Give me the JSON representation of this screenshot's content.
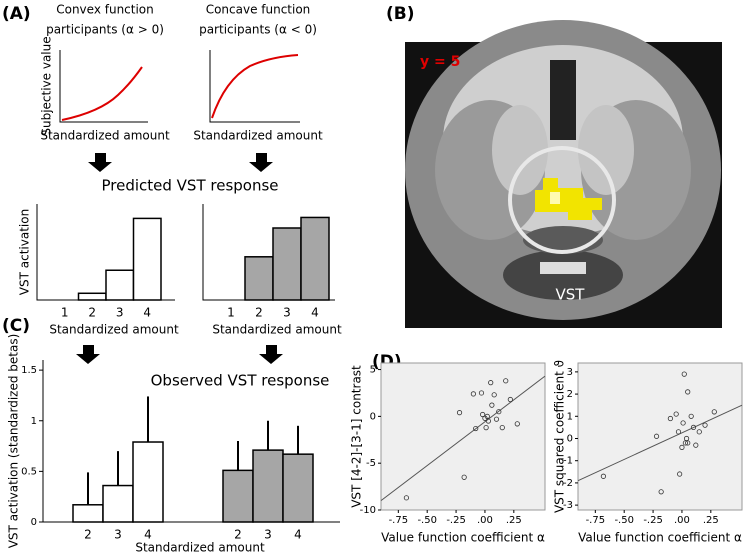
{
  "panel_labels": [
    "(A)",
    "(B)",
    "(C)",
    "(D)"
  ],
  "headings": {
    "predicted": "Predicted VST response",
    "observed": "Observed VST response"
  },
  "curves": [
    {
      "title": [
        "Convex function",
        "participants (α > 0)"
      ],
      "ylabel": "Subjective value",
      "xlabel": "Standardized amount"
    },
    {
      "title": [
        "Concave function",
        "participants (α < 0)"
      ],
      "xlabel": "Standardized amount"
    }
  ],
  "brain": {
    "slice": "y = 5",
    "region": "VST"
  },
  "chart_data": [
    {
      "type": "bar",
      "categories": [
        "1",
        "2",
        "3",
        "4"
      ],
      "values": [
        0,
        0.07,
        0.31,
        0.85
      ],
      "ylim": [
        0,
        1
      ],
      "color": "#ffffff",
      "ylabel": "VST activation",
      "xlabel": "Standardized amount"
    },
    {
      "type": "bar",
      "categories": [
        "1",
        "2",
        "3",
        "4"
      ],
      "values": [
        0,
        0.45,
        0.75,
        0.86
      ],
      "ylim": [
        0,
        1
      ],
      "color": "#a6a6a6",
      "xlabel": "Standardized amount"
    },
    {
      "type": "errorbar",
      "categories": [
        "2",
        "3",
        "4",
        null,
        null,
        "2",
        "3",
        "4"
      ],
      "values": [
        0.17,
        0.36,
        0.79,
        null,
        null,
        0.51,
        0.71,
        0.67
      ],
      "errors": [
        0.32,
        0.34,
        0.45,
        null,
        null,
        0.29,
        0.29,
        0.28
      ],
      "colors": [
        "#ffffff",
        "#ffffff",
        "#ffffff",
        null,
        null,
        "#a6a6a6",
        "#a6a6a6",
        "#a6a6a6"
      ],
      "ylim": [
        0,
        1.6
      ],
      "yticks": [
        0,
        0.5,
        1,
        1.5
      ],
      "ylabel": "VST activation (standardized betas)",
      "xlabel": "Standardized amount"
    },
    {
      "type": "scatter",
      "xlabel": "Value function coefficient α",
      "ylabel": "VST [4-2]-[3-1] contrast",
      "x": [
        -0.68,
        -0.22,
        -0.18,
        -0.1,
        -0.08,
        -0.03,
        -0.02,
        0.0,
        0.01,
        0.02,
        0.03,
        0.05,
        0.06,
        0.08,
        0.1,
        0.12,
        0.15,
        0.18,
        0.22,
        0.28
      ],
      "values": [
        -8.7,
        0.4,
        -6.5,
        2.4,
        -1.3,
        2.5,
        0.2,
        -0.2,
        -1.2,
        0.0,
        -0.5,
        3.6,
        1.2,
        2.3,
        -0.3,
        0.5,
        -1.2,
        3.8,
        1.8,
        -0.8
      ],
      "fit": {
        "x": [
          -0.9,
          0.52
        ],
        "y": [
          -9.0,
          4.3
        ]
      },
      "xlim": [
        -0.9,
        0.52
      ],
      "ylim": [
        -10,
        5.7
      ],
      "xticks": [
        {
          "value": -0.75,
          "label": "-.75"
        },
        {
          "value": -0.5,
          "label": "-.50"
        },
        {
          "value": -0.25,
          "label": "-.25"
        },
        {
          "value": 0,
          "label": ".00"
        },
        {
          "value": 0.25,
          "label": ".25"
        }
      ],
      "yticks": [
        5,
        0,
        -5,
        -10
      ]
    },
    {
      "type": "scatter",
      "xlabel": "Value function coefficient α",
      "ylabel": "VST squared coefficient ϑ",
      "x": [
        -0.68,
        -0.22,
        -0.18,
        -0.1,
        -0.05,
        -0.02,
        0.0,
        0.01,
        0.02,
        0.03,
        0.04,
        0.05,
        0.08,
        0.1,
        0.12,
        0.15,
        0.2,
        0.28,
        0.05,
        -0.03
      ],
      "values": [
        -1.7,
        0.1,
        -2.4,
        0.9,
        1.1,
        -1.6,
        -0.4,
        0.7,
        2.9,
        -0.2,
        0.0,
        2.1,
        1.0,
        0.5,
        -0.3,
        0.3,
        0.6,
        1.2,
        -0.2,
        0.3
      ],
      "fit": {
        "x": [
          -0.9,
          0.52
        ],
        "y": [
          -1.9,
          1.5
        ]
      },
      "xlim": [
        -0.9,
        0.52
      ],
      "ylim": [
        -3.22,
        3.4
      ],
      "xticks": [
        {
          "value": -0.75,
          "label": "-.75"
        },
        {
          "value": -0.5,
          "label": "-.50"
        },
        {
          "value": -0.25,
          "label": "-.25"
        },
        {
          "value": 0,
          "label": ".00"
        },
        {
          "value": 0.25,
          "label": ".25"
        }
      ],
      "yticks": [
        3,
        2,
        1,
        0,
        -1,
        -2,
        -3
      ]
    }
  ]
}
